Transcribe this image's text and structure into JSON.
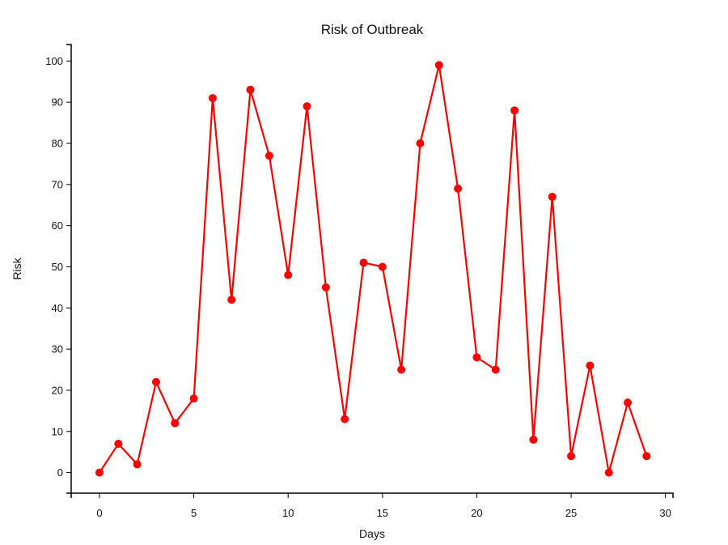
{
  "chart_data": {
    "type": "line",
    "title": "Risk of Outbreak",
    "xlabel": "Days",
    "ylabel": "Risk",
    "x": [
      0,
      1,
      2,
      3,
      4,
      5,
      6,
      7,
      8,
      9,
      10,
      11,
      12,
      13,
      14,
      15,
      16,
      17,
      18,
      19,
      20,
      21,
      22,
      23,
      24,
      25,
      26,
      27,
      28,
      29
    ],
    "series": [
      {
        "values": [
          0,
          7,
          2,
          22,
          12,
          18,
          91,
          42,
          93,
          77,
          48,
          89,
          45,
          13,
          51,
          50,
          25,
          80,
          99,
          69,
          28,
          25,
          88,
          8,
          67,
          4,
          26,
          0,
          17,
          4
        ],
        "color": "#ff0000"
      }
    ],
    "xlim": [
      -1.5,
      30.4
    ],
    "ylim": [
      -5,
      104
    ],
    "xticks": [
      0,
      5,
      10,
      15,
      20,
      25,
      30
    ],
    "yticks": [
      0,
      10,
      20,
      30,
      40,
      50,
      60,
      70,
      80,
      90,
      100
    ],
    "grid": false,
    "legend": "none"
  }
}
